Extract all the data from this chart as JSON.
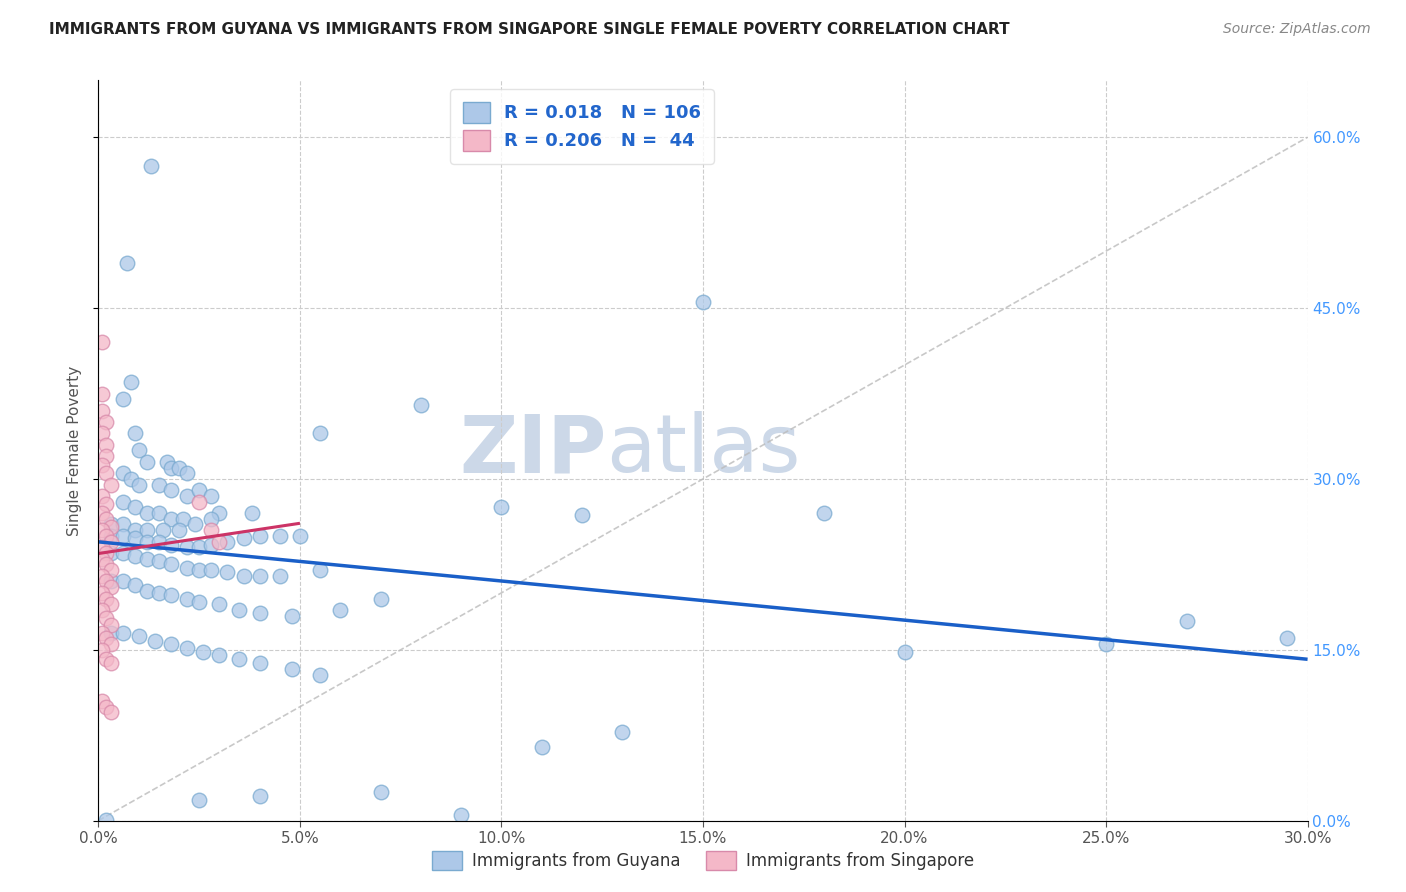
{
  "title": "IMMIGRANTS FROM GUYANA VS IMMIGRANTS FROM SINGAPORE SINGLE FEMALE POVERTY CORRELATION CHART",
  "source": "Source: ZipAtlas.com",
  "xlim": [
    0.0,
    0.3
  ],
  "ylim": [
    0.0,
    0.65
  ],
  "ylabel": "Single Female Poverty",
  "legend_labels": [
    "Immigrants from Guyana",
    "Immigrants from Singapore"
  ],
  "r_guyana": "0.018",
  "n_guyana": "106",
  "r_singapore": "0.206",
  "n_singapore": "44",
  "color_guyana": "#adc8e8",
  "color_singapore": "#f4b8c8",
  "color_guyana_edge": "#7aaad0",
  "color_singapore_edge": "#d88aaa",
  "trendline_guyana_color": "#1a5fc8",
  "trendline_singapore_color": "#cc3366",
  "watermark_color": "#ccd8e8",
  "grid_color": "#cccccc",
  "right_tick_color": "#4499ff",
  "title_color": "#222222",
  "source_color": "#888888",
  "guyana_points": [
    [
      0.013,
      0.575
    ],
    [
      0.007,
      0.49
    ],
    [
      0.15,
      0.455
    ],
    [
      0.08,
      0.365
    ],
    [
      0.055,
      0.34
    ],
    [
      0.008,
      0.385
    ],
    [
      0.01,
      0.325
    ],
    [
      0.012,
      0.315
    ],
    [
      0.017,
      0.315
    ],
    [
      0.006,
      0.37
    ],
    [
      0.009,
      0.34
    ],
    [
      0.018,
      0.31
    ],
    [
      0.02,
      0.31
    ],
    [
      0.022,
      0.305
    ],
    [
      0.006,
      0.305
    ],
    [
      0.008,
      0.3
    ],
    [
      0.01,
      0.295
    ],
    [
      0.015,
      0.295
    ],
    [
      0.018,
      0.29
    ],
    [
      0.022,
      0.285
    ],
    [
      0.025,
      0.29
    ],
    [
      0.028,
      0.285
    ],
    [
      0.006,
      0.28
    ],
    [
      0.009,
      0.275
    ],
    [
      0.012,
      0.27
    ],
    [
      0.015,
      0.27
    ],
    [
      0.018,
      0.265
    ],
    [
      0.021,
      0.265
    ],
    [
      0.03,
      0.27
    ],
    [
      0.038,
      0.27
    ],
    [
      0.003,
      0.26
    ],
    [
      0.006,
      0.26
    ],
    [
      0.009,
      0.255
    ],
    [
      0.012,
      0.255
    ],
    [
      0.016,
      0.255
    ],
    [
      0.02,
      0.255
    ],
    [
      0.024,
      0.26
    ],
    [
      0.028,
      0.265
    ],
    [
      0.003,
      0.25
    ],
    [
      0.006,
      0.25
    ],
    [
      0.009,
      0.248
    ],
    [
      0.012,
      0.245
    ],
    [
      0.015,
      0.245
    ],
    [
      0.018,
      0.242
    ],
    [
      0.022,
      0.24
    ],
    [
      0.025,
      0.24
    ],
    [
      0.028,
      0.242
    ],
    [
      0.032,
      0.245
    ],
    [
      0.036,
      0.248
    ],
    [
      0.04,
      0.25
    ],
    [
      0.045,
      0.25
    ],
    [
      0.05,
      0.25
    ],
    [
      0.1,
      0.275
    ],
    [
      0.12,
      0.268
    ],
    [
      0.18,
      0.27
    ],
    [
      0.003,
      0.235
    ],
    [
      0.006,
      0.235
    ],
    [
      0.009,
      0.232
    ],
    [
      0.012,
      0.23
    ],
    [
      0.015,
      0.228
    ],
    [
      0.018,
      0.225
    ],
    [
      0.022,
      0.222
    ],
    [
      0.025,
      0.22
    ],
    [
      0.028,
      0.22
    ],
    [
      0.032,
      0.218
    ],
    [
      0.036,
      0.215
    ],
    [
      0.04,
      0.215
    ],
    [
      0.045,
      0.215
    ],
    [
      0.055,
      0.22
    ],
    [
      0.003,
      0.21
    ],
    [
      0.006,
      0.21
    ],
    [
      0.009,
      0.207
    ],
    [
      0.012,
      0.202
    ],
    [
      0.015,
      0.2
    ],
    [
      0.018,
      0.198
    ],
    [
      0.022,
      0.195
    ],
    [
      0.025,
      0.192
    ],
    [
      0.03,
      0.19
    ],
    [
      0.035,
      0.185
    ],
    [
      0.04,
      0.182
    ],
    [
      0.048,
      0.18
    ],
    [
      0.06,
      0.185
    ],
    [
      0.07,
      0.195
    ],
    [
      0.003,
      0.165
    ],
    [
      0.006,
      0.165
    ],
    [
      0.01,
      0.162
    ],
    [
      0.014,
      0.158
    ],
    [
      0.018,
      0.155
    ],
    [
      0.022,
      0.152
    ],
    [
      0.026,
      0.148
    ],
    [
      0.03,
      0.145
    ],
    [
      0.035,
      0.142
    ],
    [
      0.04,
      0.138
    ],
    [
      0.048,
      0.133
    ],
    [
      0.055,
      0.128
    ],
    [
      0.25,
      0.155
    ],
    [
      0.2,
      0.148
    ],
    [
      0.295,
      0.16
    ],
    [
      0.27,
      0.175
    ],
    [
      0.002,
      0.001
    ],
    [
      0.09,
      0.005
    ],
    [
      0.07,
      0.025
    ],
    [
      0.04,
      0.022
    ],
    [
      0.025,
      0.018
    ],
    [
      0.13,
      0.078
    ],
    [
      0.11,
      0.065
    ]
  ],
  "singapore_points": [
    [
      0.001,
      0.42
    ],
    [
      0.001,
      0.375
    ],
    [
      0.001,
      0.36
    ],
    [
      0.002,
      0.35
    ],
    [
      0.001,
      0.34
    ],
    [
      0.002,
      0.33
    ],
    [
      0.002,
      0.32
    ],
    [
      0.001,
      0.312
    ],
    [
      0.002,
      0.305
    ],
    [
      0.003,
      0.295
    ],
    [
      0.001,
      0.285
    ],
    [
      0.002,
      0.278
    ],
    [
      0.001,
      0.27
    ],
    [
      0.002,
      0.265
    ],
    [
      0.003,
      0.258
    ],
    [
      0.001,
      0.255
    ],
    [
      0.002,
      0.25
    ],
    [
      0.003,
      0.245
    ],
    [
      0.001,
      0.24
    ],
    [
      0.002,
      0.235
    ],
    [
      0.001,
      0.23
    ],
    [
      0.002,
      0.225
    ],
    [
      0.003,
      0.22
    ],
    [
      0.001,
      0.215
    ],
    [
      0.002,
      0.21
    ],
    [
      0.003,
      0.205
    ],
    [
      0.001,
      0.2
    ],
    [
      0.002,
      0.195
    ],
    [
      0.003,
      0.19
    ],
    [
      0.001,
      0.185
    ],
    [
      0.002,
      0.178
    ],
    [
      0.003,
      0.172
    ],
    [
      0.001,
      0.165
    ],
    [
      0.002,
      0.16
    ],
    [
      0.003,
      0.155
    ],
    [
      0.001,
      0.15
    ],
    [
      0.002,
      0.142
    ],
    [
      0.003,
      0.138
    ],
    [
      0.001,
      0.105
    ],
    [
      0.002,
      0.1
    ],
    [
      0.003,
      0.095
    ],
    [
      0.025,
      0.28
    ],
    [
      0.028,
      0.255
    ],
    [
      0.03,
      0.245
    ]
  ]
}
